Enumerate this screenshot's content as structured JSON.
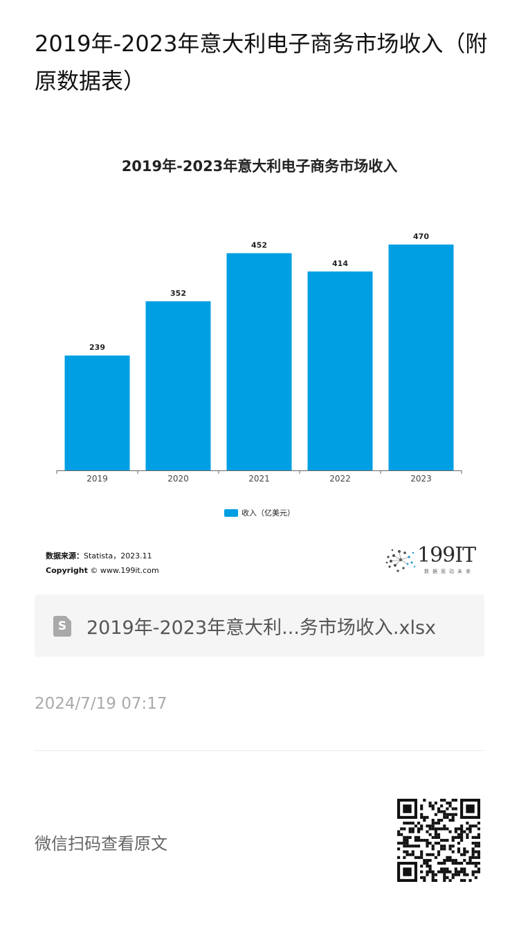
{
  "article": {
    "title": "2019年-2023年意大利电子商务市场收入（附原数据表）",
    "timestamp": "2024/7/19 07:17",
    "scan_text": "微信扫码查看原文"
  },
  "attachment": {
    "file_name": "2019年-2023年意大利...务市场收入.xlsx",
    "icon_glyph": "S"
  },
  "source": {
    "label": "数据来源：",
    "value": "Statista，2023.11",
    "copyright_label": "Copyright",
    "copyright_value": "© www.199it.com"
  },
  "logo": {
    "text": "199IT",
    "tagline": "数据驱动未来"
  },
  "colors": {
    "bar": "#009fe3",
    "axis": "#666666"
  },
  "chart_data": {
    "type": "bar",
    "title": "2019年-2023年意大利电子商务市场收入",
    "categories": [
      "2019",
      "2020",
      "2021",
      "2022",
      "2023"
    ],
    "series": [
      {
        "name": "收入（亿美元）",
        "values": [
          239,
          352,
          452,
          414,
          470
        ]
      }
    ],
    "data_labels": [
      "239",
      "352",
      "452",
      "414",
      "470"
    ],
    "ylim": [
      0,
      500
    ],
    "grid": false,
    "legend": "bottom-center"
  }
}
